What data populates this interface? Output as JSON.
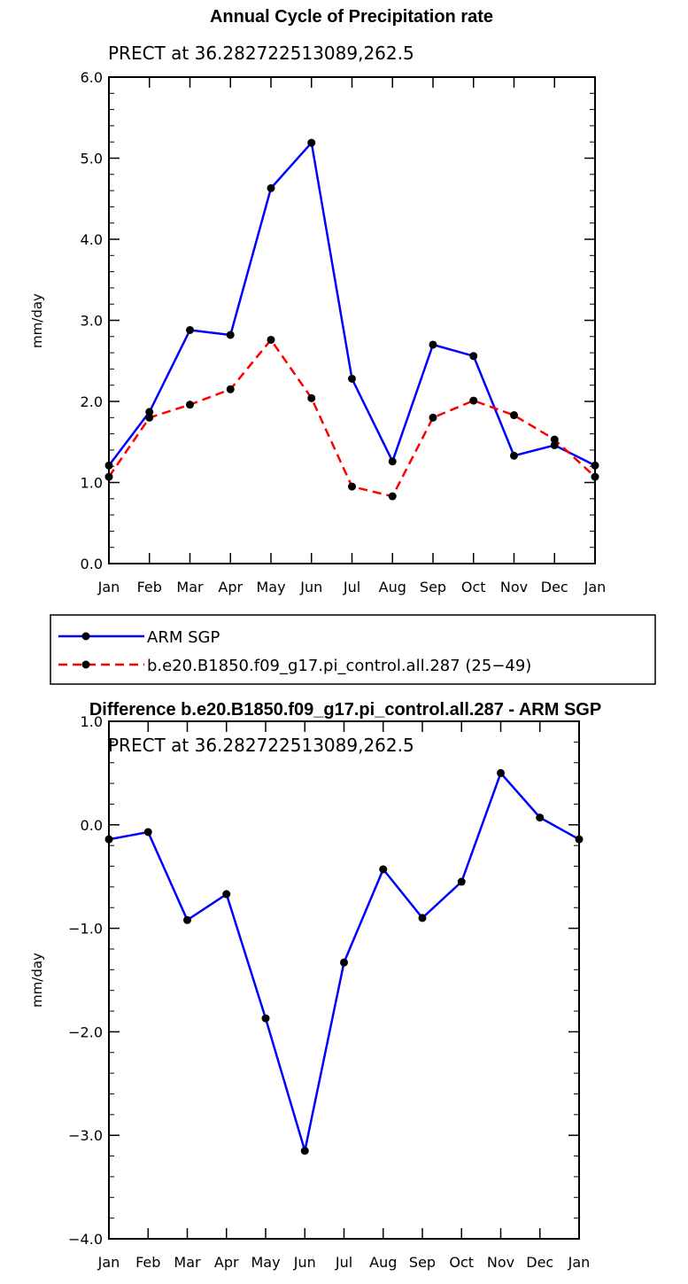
{
  "chart_data": [
    {
      "type": "line",
      "title": "Annual Cycle of Precipitation rate",
      "subtitle": "PRECT at 36.282722513089,262.5",
      "xlabel": "",
      "ylabel": "mm/day",
      "categories": [
        "Jan",
        "Feb",
        "Mar",
        "Apr",
        "May",
        "Jun",
        "Jul",
        "Aug",
        "Sep",
        "Oct",
        "Nov",
        "Dec",
        "Jan"
      ],
      "ylim": [
        0.0,
        6.0
      ],
      "yticks": [
        "0.0",
        "1.0",
        "2.0",
        "3.0",
        "4.0",
        "5.0",
        "6.0"
      ],
      "grid": false,
      "legend_position": "below",
      "series": [
        {
          "name": "ARM SGP",
          "color": "#0000ff",
          "dash": "solid",
          "values": [
            1.21,
            1.87,
            2.88,
            2.82,
            4.63,
            5.19,
            2.28,
            1.26,
            2.7,
            2.56,
            1.33,
            1.46,
            1.21
          ]
        },
        {
          "name": "b.e20.B1850.f09_g17.pi_control.all.287 (25−49)",
          "color": "#ff0000",
          "dash": "dashed",
          "values": [
            1.07,
            1.8,
            1.96,
            2.15,
            2.76,
            2.04,
            0.95,
            0.83,
            1.8,
            2.01,
            1.83,
            1.53,
            1.07
          ]
        }
      ]
    },
    {
      "type": "line",
      "title": "Difference b.e20.B1850.f09_g17.pi_control.all.287 - ARM SGP",
      "subtitle": "PRECT at 36.282722513089,262.5",
      "xlabel": "",
      "ylabel": "mm/day",
      "categories": [
        "Jan",
        "Feb",
        "Mar",
        "Apr",
        "May",
        "Jun",
        "Jul",
        "Aug",
        "Sep",
        "Oct",
        "Nov",
        "Dec",
        "Jan"
      ],
      "ylim": [
        -4.0,
        1.0
      ],
      "yticks": [
        "−4.0",
        "−3.0",
        "−2.0",
        "−1.0",
        "0.0",
        "1.0"
      ],
      "grid": false,
      "series": [
        {
          "color": "#0000ff",
          "dash": "solid",
          "values": [
            -0.14,
            -0.07,
            -0.92,
            -0.67,
            -1.87,
            -3.15,
            -1.33,
            -0.43,
            -0.9,
            -0.55,
            0.5,
            0.07,
            -0.14
          ]
        }
      ]
    }
  ]
}
